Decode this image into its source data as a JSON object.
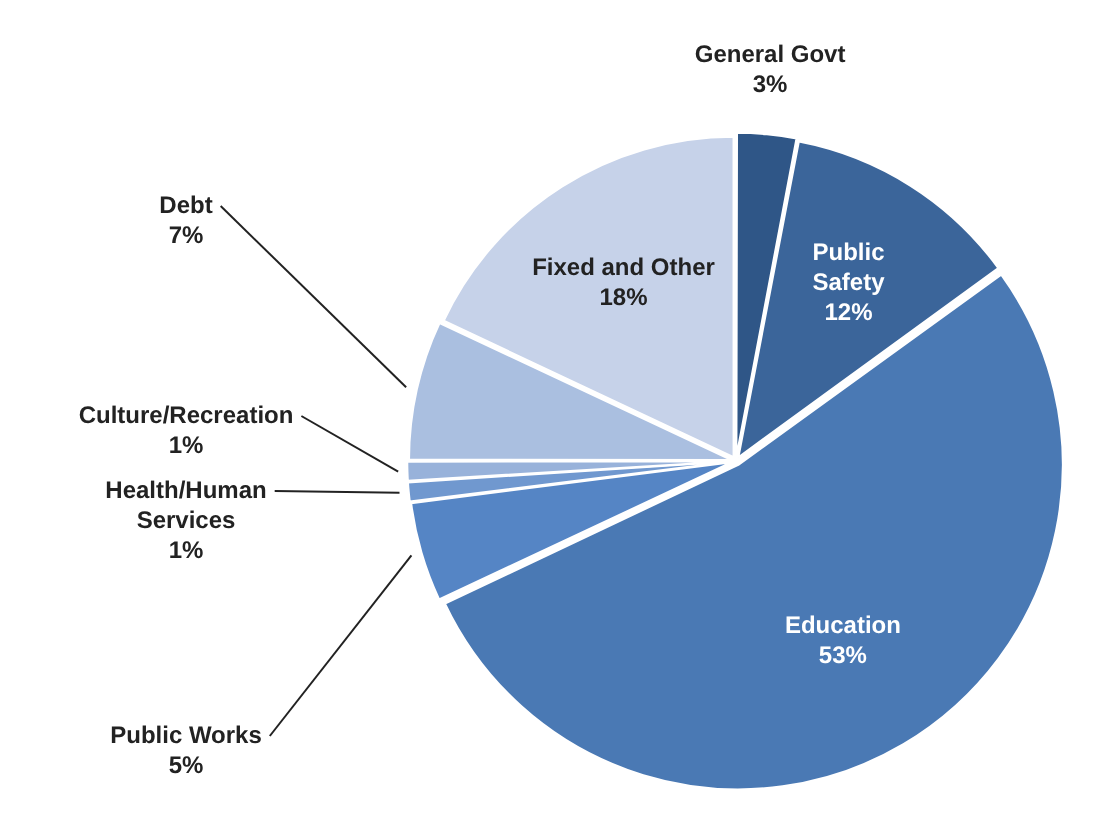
{
  "chart_data": {
    "type": "pie",
    "categories": [
      "General Govt",
      "Public Safety",
      "Education",
      "Public Works",
      "Health/Human Services",
      "Culture/Recreation",
      "Debt",
      "Fixed and Other"
    ],
    "values": [
      3,
      12,
      53,
      5,
      1,
      1,
      7,
      18
    ],
    "value_labels": [
      "3%",
      "12%",
      "53%",
      "5%",
      "1%",
      "1%",
      "7%",
      "18%"
    ],
    "colors": [
      "#2f5687",
      "#3b659a",
      "#4a79b4",
      "#5585c5",
      "#7098cf",
      "#98b2da",
      "#aabfe0",
      "#c6d2e9"
    ],
    "legend": false
  }
}
